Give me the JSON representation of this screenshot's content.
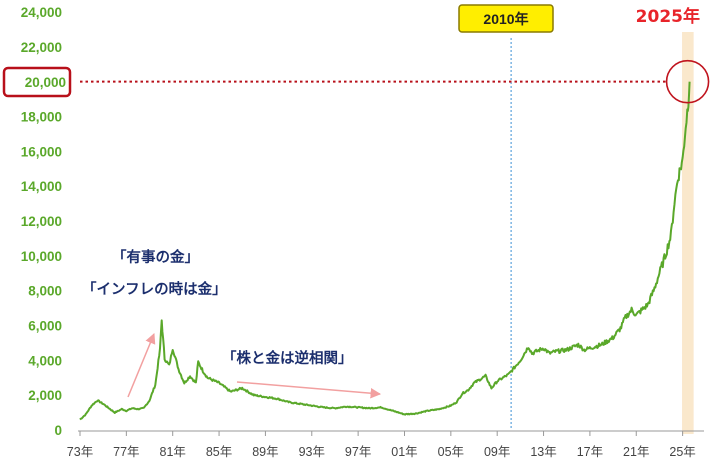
{
  "chart_data": {
    "type": "line",
    "title": "",
    "xlabel": "",
    "ylabel": "",
    "ylim": [
      0,
      24000
    ],
    "yticks": [
      0,
      2000,
      4000,
      6000,
      8000,
      10000,
      12000,
      14000,
      16000,
      18000,
      20000,
      22000,
      24000
    ],
    "ytick_labels": [
      "0",
      "2,000",
      "4,000",
      "6,000",
      "8,000",
      "10,000",
      "12,000",
      "14,000",
      "16,000",
      "18,000",
      "20,000",
      "22,000",
      "24,000"
    ],
    "xticks": [
      1973,
      1977,
      1981,
      1985,
      1989,
      1993,
      1997,
      2001,
      2005,
      2009,
      2013,
      2017,
      2021,
      2025
    ],
    "xtick_labels": [
      "73年",
      "77年",
      "81年",
      "85年",
      "89年",
      "93年",
      "97年",
      "01年",
      "05年",
      "09年",
      "13年",
      "17年",
      "21年",
      "25年"
    ],
    "xlim": [
      1973,
      2026.5
    ],
    "grid": false,
    "series": [
      {
        "x": [
          1973.0,
          1973.5,
          1974.0,
          1974.5,
          1975.0,
          1975.5,
          1976.0,
          1976.6,
          1977.0,
          1977.5,
          1978.0,
          1978.5,
          1979.0,
          1979.5,
          1979.9,
          1980.05,
          1980.3,
          1980.7,
          1981.0,
          1981.5,
          1982.0,
          1982.5,
          1983.0,
          1983.2,
          1983.6,
          1984.0,
          1985.0,
          1986.0,
          1987.0,
          1987.5,
          1988.0,
          1989.0,
          1990.0,
          1991.0,
          1992.0,
          1993.0,
          1994.0,
          1995.0,
          1996.0,
          1997.0,
          1998.0,
          1999.0,
          2000.0,
          2001.0,
          2002.0,
          2003.0,
          2004.0,
          2005.0,
          2005.5,
          2006.0,
          2006.5,
          2007.0,
          2008.0,
          2008.5,
          2009.0,
          2010.0,
          2011.0,
          2011.7,
          2012.0,
          2013.0,
          2013.5,
          2014.0,
          2015.0,
          2016.0,
          2016.5,
          2017.0,
          2018.0,
          2019.0,
          2019.7,
          2020.0,
          2020.6,
          2021.0,
          2022.0,
          2022.5,
          2023.0,
          2023.5,
          2024.0,
          2024.3,
          2024.6,
          2025.0,
          2025.2,
          2025.4,
          2025.5,
          2025.6
        ],
        "values": [
          600,
          900,
          1400,
          1700,
          1500,
          1250,
          1000,
          1200,
          1100,
          1250,
          1200,
          1250,
          1700,
          2600,
          4600,
          6300,
          4100,
          3700,
          4700,
          3500,
          2700,
          3100,
          2700,
          3900,
          3400,
          3000,
          2700,
          2200,
          2400,
          2200,
          2000,
          1900,
          1800,
          1600,
          1500,
          1400,
          1300,
          1250,
          1350,
          1300,
          1250,
          1300,
          1100,
          900,
          950,
          1100,
          1200,
          1400,
          1600,
          2100,
          2300,
          2700,
          3100,
          2400,
          2800,
          3200,
          4000,
          4800,
          4400,
          4700,
          4400,
          4500,
          4600,
          4900,
          4600,
          4700,
          4900,
          5300,
          5900,
          6400,
          6900,
          6600,
          7200,
          8000,
          9000,
          10000,
          11200,
          13100,
          14500,
          15500,
          17000,
          18300,
          19000,
          20000
        ]
      }
    ],
    "line_color": "#5aa82a",
    "highlight_year": "2010年",
    "highlight_value_label": "20,000",
    "highlight_value": 20000,
    "end_label": "2025年",
    "end_label_color": "#e8242a",
    "highlight_band_color": "#fae8cc",
    "annotations": [
      {
        "text": "「有事の金」"
      },
      {
        "text": "「インフレの時は金」"
      },
      {
        "text": "「株と金は逆相関」"
      }
    ]
  }
}
